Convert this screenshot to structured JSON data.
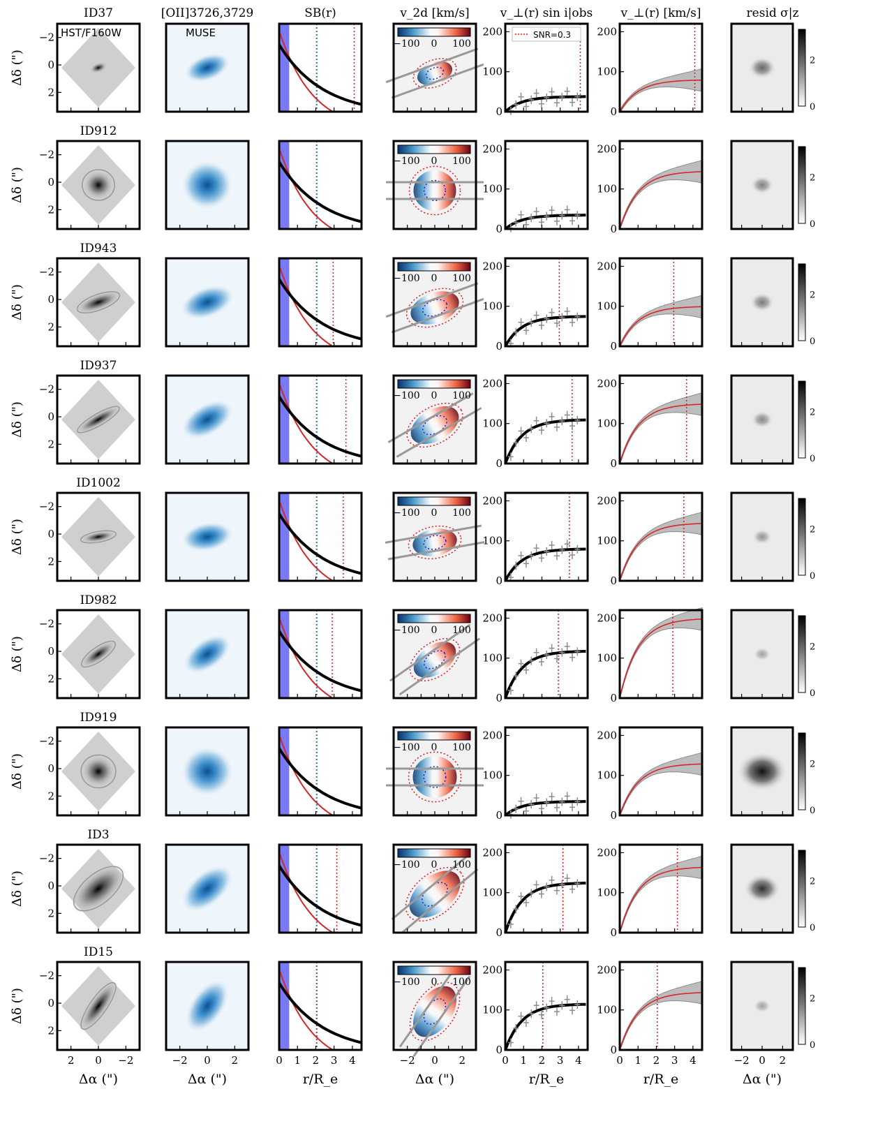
{
  "columns": {
    "titles": [
      "ID",
      "[OII]3726,3729",
      "SB(r)",
      "v_2d  [km/s]",
      "v_⊥(r) sin i|obs",
      "v_⊥(r)  [km/s]",
      "resid σ|z"
    ],
    "xlabels": [
      "Δα (\")",
      "Δα (\")",
      "r/R_e",
      "Δα (\")",
      "r/R_e",
      "r/R_e",
      "Δα (\")"
    ],
    "ylabel": "Δδ (\")"
  },
  "panel_labels": {
    "hst": "HST/F160W",
    "muse": "MUSE"
  },
  "legend": {
    "snr": "SNR=0.3"
  },
  "ticks": {
    "hst_x": [
      "2",
      "0",
      "−2"
    ],
    "img_x": [
      "−2",
      "0",
      "2"
    ],
    "img_y": [
      "−2",
      "0",
      "2"
    ],
    "r": [
      "0",
      "1",
      "2",
      "3",
      "4"
    ],
    "v_y": [
      "0",
      "100",
      "200"
    ],
    "cbar_v": [
      "−100",
      "0",
      "100"
    ],
    "cbar_resid": [
      "0",
      "2"
    ]
  },
  "colors": {
    "model_red": "#d62728",
    "data_black": "#000000",
    "data_grey": "#8c8c8c",
    "psf_band": "#7a7af5",
    "re_blue": "#1f77b4",
    "snr_red": "#e8141b",
    "diverging_blue": "#2166ac",
    "diverging_red": "#b2182b",
    "muse_blue": "#2a78b8"
  },
  "chart_data": {
    "type": "mixed-panel-grid",
    "rows": 9,
    "cols": 7,
    "axis_ranges": {
      "image_x": [
        3,
        -3
      ],
      "image_y": [
        3,
        -3
      ],
      "r_over_Re": [
        0,
        4.5
      ],
      "velocity_y": [
        0,
        220
      ],
      "v2d_colorbar": [
        -130,
        130
      ],
      "resid_colorbar": [
        0,
        3.3
      ]
    },
    "galaxies": [
      {
        "id": "ID37",
        "pa": -20,
        "q": 0.55,
        "ell_a": 0,
        "v_obs_max": 38,
        "v_max": 80,
        "snr_r": 4.1,
        "has_vline_v": true,
        "resid_peak": 1.2
      },
      {
        "id": "ID912",
        "pa": 0,
        "q": 0.95,
        "ell_a": 0.9,
        "v_obs_max": 35,
        "v_max": 145,
        "snr_r": null,
        "has_vline_v": false,
        "resid_peak": 0.8
      },
      {
        "id": "ID943",
        "pa": -20,
        "q": 0.35,
        "ell_a": 2.0,
        "v_obs_max": 75,
        "v_max": 100,
        "snr_r": 2.95,
        "has_vline_v": true,
        "resid_peak": 0.9
      },
      {
        "id": "ID937",
        "pa": -30,
        "q": 0.25,
        "ell_a": 2.3,
        "v_obs_max": 110,
        "v_max": 150,
        "snr_r": 3.65,
        "has_vline_v": true,
        "resid_peak": 0.7
      },
      {
        "id": "ID1002",
        "pa": -10,
        "q": 0.3,
        "ell_a": 1.2,
        "v_obs_max": 80,
        "v_max": 145,
        "snr_r": 3.5,
        "has_vline_v": true,
        "resid_peak": 0.5
      },
      {
        "id": "ID982",
        "pa": -35,
        "q": 0.35,
        "ell_a": 1.6,
        "v_obs_max": 118,
        "v_max": 200,
        "snr_r": 2.9,
        "has_vline_v": true,
        "resid_peak": 0.3
      },
      {
        "id": "ID919",
        "pa": 0,
        "q": 0.95,
        "ell_a": 1.1,
        "v_obs_max": 35,
        "v_max": 130,
        "snr_r": null,
        "has_vline_v": false,
        "resid_peak": 3.2
      },
      {
        "id": "ID3",
        "pa": -40,
        "q": 0.5,
        "ell_a": 3.3,
        "v_obs_max": 125,
        "v_max": 165,
        "snr_r": 3.15,
        "has_vline_v": true,
        "resid_peak": 2.0
      },
      {
        "id": "ID15",
        "pa": -55,
        "q": 0.3,
        "ell_a": 3.0,
        "v_obs_max": 115,
        "v_max": 145,
        "snr_r": 2.05,
        "has_vline_v": true,
        "resid_peak": 0.3
      }
    ]
  }
}
